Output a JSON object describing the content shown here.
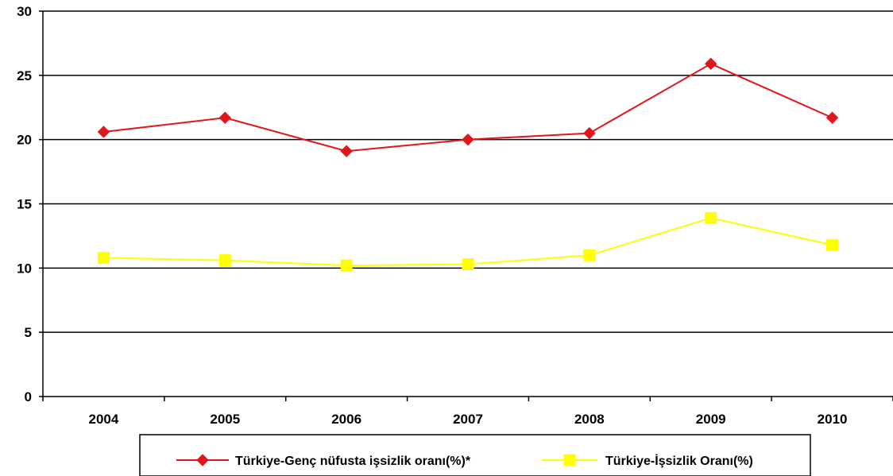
{
  "chart_data": {
    "type": "line",
    "title": "",
    "xlabel": "",
    "ylabel": "",
    "categories": [
      "2004",
      "2005",
      "2006",
      "2007",
      "2008",
      "2009",
      "2010"
    ],
    "ylim": [
      0,
      30
    ],
    "yticks": [
      0,
      5,
      10,
      15,
      20,
      25,
      30
    ],
    "grid": "horizontal",
    "legend_position": "bottom",
    "series": [
      {
        "name": "Türkiye-Genç nüfusta işsizlik oranı(%)*",
        "color": "#E3151A",
        "marker": "diamond",
        "values": [
          20.6,
          21.7,
          19.1,
          20.0,
          20.5,
          25.9,
          21.7
        ]
      },
      {
        "name": "Türkiye-İşsizlik Oranı(%)",
        "color": "#FFFF00",
        "marker": "square",
        "values": [
          10.8,
          10.6,
          10.2,
          10.3,
          11.0,
          13.9,
          11.8
        ]
      }
    ]
  }
}
